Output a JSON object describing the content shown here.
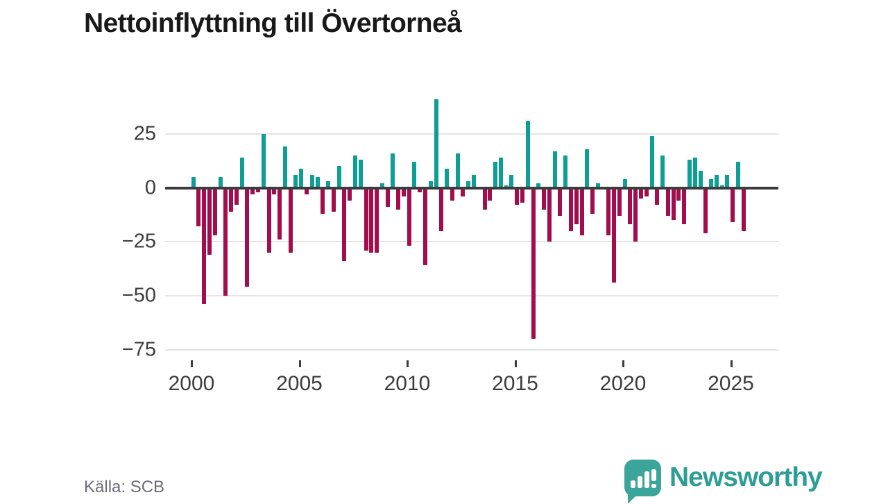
{
  "page": {
    "title": "Nettoinflyttning till Övertorneå",
    "source": "Källa: SCB"
  },
  "logo": {
    "brand": "Newsworthy",
    "icon": "bar-chart-speech-bubble-icon",
    "icon_color": "#3ba49b",
    "text_color": "#2e9d95"
  },
  "chart_data": {
    "type": "bar",
    "title": "Nettoinflyttning till Övertorneå",
    "xlabel": "",
    "ylabel": "",
    "frequency": "quarterly",
    "x": [
      "2000-K1",
      "2000-K2",
      "2000-K3",
      "2000-K4",
      "2001-K1",
      "2001-K2",
      "2001-K3",
      "2001-K4",
      "2002-K1",
      "2002-K2",
      "2002-K3",
      "2002-K4",
      "2003-K1",
      "2003-K2",
      "2003-K3",
      "2003-K4",
      "2004-K1",
      "2004-K2",
      "2004-K3",
      "2004-K4",
      "2005-K1",
      "2005-K2",
      "2005-K3",
      "2005-K4",
      "2006-K1",
      "2006-K2",
      "2006-K3",
      "2006-K4",
      "2007-K1",
      "2007-K2",
      "2007-K3",
      "2007-K4",
      "2008-K1",
      "2008-K2",
      "2008-K3",
      "2008-K4",
      "2009-K1",
      "2009-K2",
      "2009-K3",
      "2009-K4",
      "2010-K1",
      "2010-K2",
      "2010-K3",
      "2010-K4",
      "2011-K1",
      "2011-K2",
      "2011-K3",
      "2011-K4",
      "2012-K1",
      "2012-K2",
      "2012-K3",
      "2012-K4",
      "2013-K1",
      "2013-K2",
      "2013-K3",
      "2013-K4",
      "2014-K1",
      "2014-K2",
      "2014-K3",
      "2014-K4",
      "2015-K1",
      "2015-K2",
      "2015-K3",
      "2015-K4",
      "2016-K1",
      "2016-K2",
      "2016-K3",
      "2016-K4",
      "2017-K1",
      "2017-K2",
      "2017-K3",
      "2017-K4",
      "2018-K1",
      "2018-K2",
      "2018-K3",
      "2018-K4",
      "2019-K1",
      "2019-K2",
      "2019-K3",
      "2019-K4",
      "2020-K1",
      "2020-K2",
      "2020-K3",
      "2020-K4",
      "2021-K1",
      "2021-K2",
      "2021-K3",
      "2021-K4",
      "2022-K1",
      "2022-K2",
      "2022-K3",
      "2022-K4",
      "2023-K1",
      "2023-K2",
      "2023-K3",
      "2023-K4",
      "2024-K1",
      "2024-K2",
      "2024-K3",
      "2024-K4",
      "2025-K1",
      "2025-K2",
      "2025-K3"
    ],
    "values": [
      5,
      -18,
      -54,
      -31,
      -22,
      5,
      -50,
      -11,
      -8,
      14,
      -46,
      -3,
      -2,
      25,
      -30,
      -3,
      -24,
      19,
      -30,
      6,
      9,
      -3,
      6,
      5,
      -12,
      3,
      -11,
      10,
      -34,
      -6,
      15,
      13,
      -29,
      -30,
      -30,
      2,
      -9,
      16,
      -10,
      -4,
      -27,
      12,
      -2,
      -36,
      3,
      41,
      -20,
      9,
      -6,
      16,
      -4,
      3,
      6,
      0,
      -10,
      -6,
      12,
      14,
      1,
      6,
      -8,
      -7,
      31,
      -70,
      2,
      -10,
      -25,
      17,
      -13,
      15,
      -20,
      -17,
      -22,
      18,
      -12,
      2,
      0,
      -22,
      -44,
      -13,
      4,
      -17,
      -25,
      -5,
      -4,
      24,
      -8,
      15,
      -13,
      -15,
      -6,
      -17,
      13,
      14,
      8,
      -21,
      4,
      6,
      1,
      6,
      -16,
      12,
      -20
    ],
    "x_tick_labels": [
      "2000",
      "2005",
      "2010",
      "2015",
      "2020",
      "2025"
    ],
    "x_tick_years": [
      0,
      5,
      10,
      15,
      20,
      25
    ],
    "y_ticks": [
      25,
      0,
      -25,
      -50,
      -75
    ],
    "y_tick_labels": [
      "25",
      "0",
      "−25",
      "−50",
      "−75"
    ],
    "ylim": [
      -75,
      45
    ],
    "grid": "horizontal",
    "legend": "none",
    "colors": {
      "positive": "#0d9e96",
      "negative": "#a30d4d",
      "zero_line": "#3c3c3c",
      "gridline": "#e4e4e4"
    }
  }
}
